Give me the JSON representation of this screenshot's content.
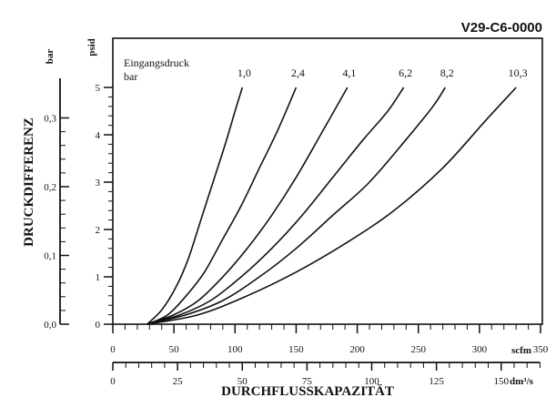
{
  "chart_data": {
    "type": "line",
    "title": "V29-C6-0000",
    "xlabel": "DURCHFLUSSKAPAZITÄT",
    "ylabel": "DRUCKDIFFERENZ",
    "legend_title_line1": "Eingangsdruck",
    "legend_title_line2": "bar",
    "x_axes": [
      {
        "unit": "scfm",
        "range": [
          0,
          350
        ],
        "ticks": [
          "0",
          "50",
          "100",
          "150",
          "200",
          "250",
          "300",
          "350"
        ]
      },
      {
        "unit": "dm³/s",
        "range": [
          0,
          165
        ],
        "ticks": [
          "0",
          "25",
          "50",
          "75",
          "100",
          "125",
          "150"
        ]
      }
    ],
    "y_axes": [
      {
        "unit": "psid",
        "range": [
          0,
          5.5
        ],
        "ticks": [
          "0",
          "1",
          "2",
          "3",
          "4",
          "5"
        ]
      },
      {
        "unit": "bar",
        "range": [
          0,
          0.379
        ],
        "ticks": [
          "0,0",
          "0,1",
          "0,2",
          "0,3"
        ]
      }
    ],
    "grid": false,
    "series": [
      {
        "name": "1,0",
        "x": [
          28,
          40,
          52,
          62,
          72,
          82,
          92,
          100,
          106
        ],
        "y": [
          0,
          0.3,
          0.8,
          1.4,
          2.2,
          3.0,
          3.8,
          4.5,
          5.0
        ]
      },
      {
        "name": "2,4",
        "x": [
          28,
          45,
          60,
          75,
          90,
          105,
          120,
          135,
          150
        ],
        "y": [
          0,
          0.2,
          0.6,
          1.1,
          1.8,
          2.5,
          3.3,
          4.1,
          5.0
        ]
      },
      {
        "name": "4,1",
        "x": [
          28,
          50,
          70,
          90,
          110,
          130,
          150,
          170,
          192
        ],
        "y": [
          0,
          0.2,
          0.5,
          1.0,
          1.6,
          2.3,
          3.1,
          4.0,
          5.0
        ]
      },
      {
        "name": "6,2",
        "x": [
          28,
          55,
          80,
          105,
          130,
          155,
          180,
          205,
          225,
          238
        ],
        "y": [
          0,
          0.2,
          0.5,
          1.0,
          1.6,
          2.3,
          3.1,
          3.9,
          4.5,
          5.0
        ]
      },
      {
        "name": "8,2",
        "x": [
          28,
          60,
          90,
          120,
          150,
          180,
          210,
          240,
          262,
          272
        ],
        "y": [
          0,
          0.2,
          0.5,
          1.0,
          1.6,
          2.3,
          3.0,
          3.9,
          4.6,
          5.0
        ]
      },
      {
        "name": "10,3",
        "x": [
          28,
          70,
          110,
          150,
          190,
          230,
          270,
          305,
          330
        ],
        "y": [
          0,
          0.2,
          0.6,
          1.1,
          1.7,
          2.4,
          3.3,
          4.3,
          5.0
        ]
      }
    ]
  }
}
